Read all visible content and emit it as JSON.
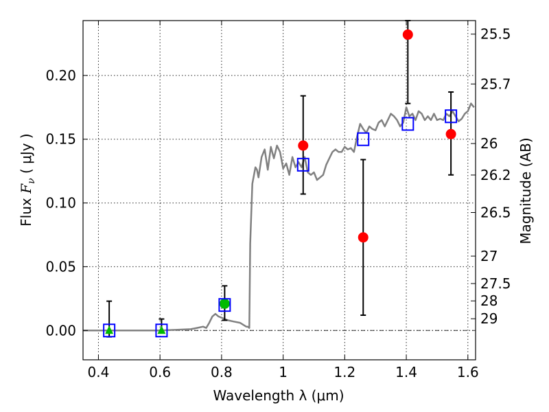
{
  "chart_data": {
    "type": "scatter",
    "xlabel": "Wavelength  λ (μm)",
    "ylabel_parts": [
      "Flux  ",
      "F",
      "ν",
      "  (  μJy )"
    ],
    "y2label": "Magnitude (AB)",
    "xlim": [
      0.35,
      1.625
    ],
    "ylim": [
      -0.023,
      0.243
    ],
    "x_ticks": [
      0.4,
      0.6,
      0.8,
      1.0,
      1.2,
      1.4,
      1.6
    ],
    "x_tick_labels": [
      "0.4",
      "0.6",
      "0.8",
      "1",
      "1.2",
      "1.4",
      "1.6"
    ],
    "y_ticks": [
      0.0,
      0.05,
      0.1,
      0.15,
      0.2
    ],
    "y_tick_labels": [
      "0.00",
      "0.05",
      "0.10",
      "0.15",
      "0.20"
    ],
    "y2_ticks": [
      {
        "label": "25.5",
        "flux": 0.2324
      },
      {
        "label": "25.7",
        "flux": 0.1933
      },
      {
        "label": "26",
        "flux": 0.1466
      },
      {
        "label": "26.2",
        "flux": 0.1219
      },
      {
        "label": "26.5",
        "flux": 0.0925
      },
      {
        "label": "27",
        "flux": 0.0583
      },
      {
        "label": "27.5",
        "flux": 0.0368
      },
      {
        "label": "28",
        "flux": 0.0232
      },
      {
        "label": "29",
        "flux": 0.0092
      }
    ],
    "grid": true,
    "zero_line": true,
    "colors": {
      "model": "#808080",
      "observed": "#ff0000",
      "upper_limit": "#00bb00",
      "detection_green": "#00bb00",
      "model_photometry": "#0000ff",
      "errorbar": "#000000"
    },
    "series": [
      {
        "type": "line",
        "x": [
          0.35,
          0.5,
          0.6,
          0.65,
          0.7,
          0.72,
          0.74,
          0.75,
          0.76,
          0.77,
          0.78,
          0.79,
          0.8,
          0.82,
          0.84,
          0.86,
          0.88,
          0.885,
          0.89,
          0.893,
          0.9,
          0.91,
          0.915,
          0.92,
          0.93,
          0.94,
          0.95,
          0.96,
          0.97,
          0.98,
          0.99,
          1.0,
          1.01,
          1.02,
          1.03,
          1.04,
          1.05,
          1.06,
          1.07,
          1.08,
          1.09,
          1.1,
          1.11,
          1.12,
          1.13,
          1.14,
          1.15,
          1.16,
          1.17,
          1.18,
          1.19,
          1.2,
          1.21,
          1.22,
          1.23,
          1.24,
          1.25,
          1.26,
          1.27,
          1.28,
          1.29,
          1.3,
          1.31,
          1.32,
          1.33,
          1.34,
          1.35,
          1.36,
          1.37,
          1.38,
          1.39,
          1.4,
          1.41,
          1.42,
          1.43,
          1.44,
          1.45,
          1.46,
          1.47,
          1.48,
          1.49,
          1.5,
          1.51,
          1.52,
          1.53,
          1.54,
          1.55,
          1.56,
          1.57,
          1.58,
          1.59,
          1.6,
          1.61,
          1.62
        ],
        "y": [
          0.0,
          0.0,
          0.0,
          0.0005,
          0.001,
          0.002,
          0.003,
          0.002,
          0.006,
          0.011,
          0.013,
          0.011,
          0.01,
          0.008,
          0.007,
          0.006,
          0.003,
          0.003,
          0.002,
          0.068,
          0.115,
          0.128,
          0.126,
          0.12,
          0.136,
          0.142,
          0.126,
          0.144,
          0.135,
          0.145,
          0.14,
          0.127,
          0.131,
          0.122,
          0.136,
          0.128,
          0.132,
          0.128,
          0.136,
          0.124,
          0.122,
          0.124,
          0.118,
          0.12,
          0.122,
          0.13,
          0.135,
          0.14,
          0.142,
          0.14,
          0.14,
          0.144,
          0.142,
          0.143,
          0.14,
          0.152,
          0.162,
          0.158,
          0.155,
          0.16,
          0.158,
          0.157,
          0.163,
          0.165,
          0.16,
          0.165,
          0.17,
          0.168,
          0.165,
          0.16,
          0.163,
          0.175,
          0.168,
          0.17,
          0.165,
          0.172,
          0.17,
          0.165,
          0.168,
          0.165,
          0.17,
          0.165,
          0.166,
          0.165,
          0.17,
          0.168,
          0.172,
          0.168,
          0.164,
          0.166,
          0.17,
          0.172,
          0.178,
          0.175
        ]
      },
      {
        "type": "errorbar_points",
        "marker": "circle",
        "color": "red",
        "points": [
          {
            "x": 1.065,
            "y": 0.145,
            "err_low": 0.107,
            "err_high": 0.184
          },
          {
            "x": 1.26,
            "y": 0.073,
            "err_low": 0.012,
            "err_high": 0.134
          },
          {
            "x": 1.405,
            "y": 0.232,
            "err_low": 0.178,
            "err_high": 0.243
          },
          {
            "x": 1.545,
            "y": 0.154,
            "err_low": 0.122,
            "err_high": 0.187
          }
        ]
      },
      {
        "type": "errorbar_points",
        "marker": "circle",
        "color": "green",
        "points": [
          {
            "x": 0.81,
            "y": 0.021,
            "err_low": 0.008,
            "err_high": 0.035
          }
        ]
      },
      {
        "type": "errorbar_points",
        "marker": "triangle",
        "color": "green",
        "points": [
          {
            "x": 0.435,
            "y": 0.0,
            "err_low": -0.005,
            "err_high": 0.023
          },
          {
            "x": 0.605,
            "y": 0.0,
            "err_low": -0.002,
            "err_high": 0.009
          }
        ]
      },
      {
        "type": "points",
        "marker": "open-square",
        "color": "blue",
        "points": [
          {
            "x": 0.435,
            "y": 0.0
          },
          {
            "x": 0.605,
            "y": 0.0
          },
          {
            "x": 0.81,
            "y": 0.02
          },
          {
            "x": 1.065,
            "y": 0.13
          },
          {
            "x": 1.26,
            "y": 0.15
          },
          {
            "x": 1.405,
            "y": 0.162
          },
          {
            "x": 1.545,
            "y": 0.168
          }
        ]
      }
    ]
  }
}
